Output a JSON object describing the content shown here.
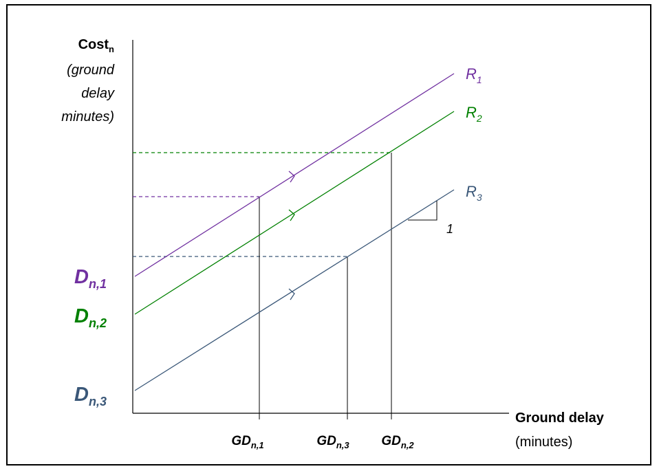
{
  "y_axis": {
    "title_main": "Cost",
    "title_sub": "n",
    "desc_line1": "(ground",
    "desc_line2": "delay",
    "desc_line3": "minutes)"
  },
  "x_axis": {
    "title": "Ground delay",
    "units": "(minutes)"
  },
  "lines": [
    {
      "base": "R",
      "sub": "1",
      "color": "#7030a0"
    },
    {
      "base": "R",
      "sub": "2",
      "color": "#008000"
    },
    {
      "base": "R",
      "sub": "3",
      "color": "#3a5778"
    }
  ],
  "intercepts": [
    {
      "base": "D",
      "sub": "n,1",
      "color": "#7030a0"
    },
    {
      "base": "D",
      "sub": "n,2",
      "color": "#008000"
    },
    {
      "base": "D",
      "sub": "n,3",
      "color": "#3a5778"
    }
  ],
  "ground_delays": [
    {
      "base": "GD",
      "sub": "n,1"
    },
    {
      "base": "GD",
      "sub": "n,3"
    },
    {
      "base": "GD",
      "sub": "n,2"
    }
  ],
  "slope_label": "1",
  "colors": {
    "axis": "#000000",
    "purple": "#7030a0",
    "green": "#008000",
    "slate": "#3a5778"
  }
}
